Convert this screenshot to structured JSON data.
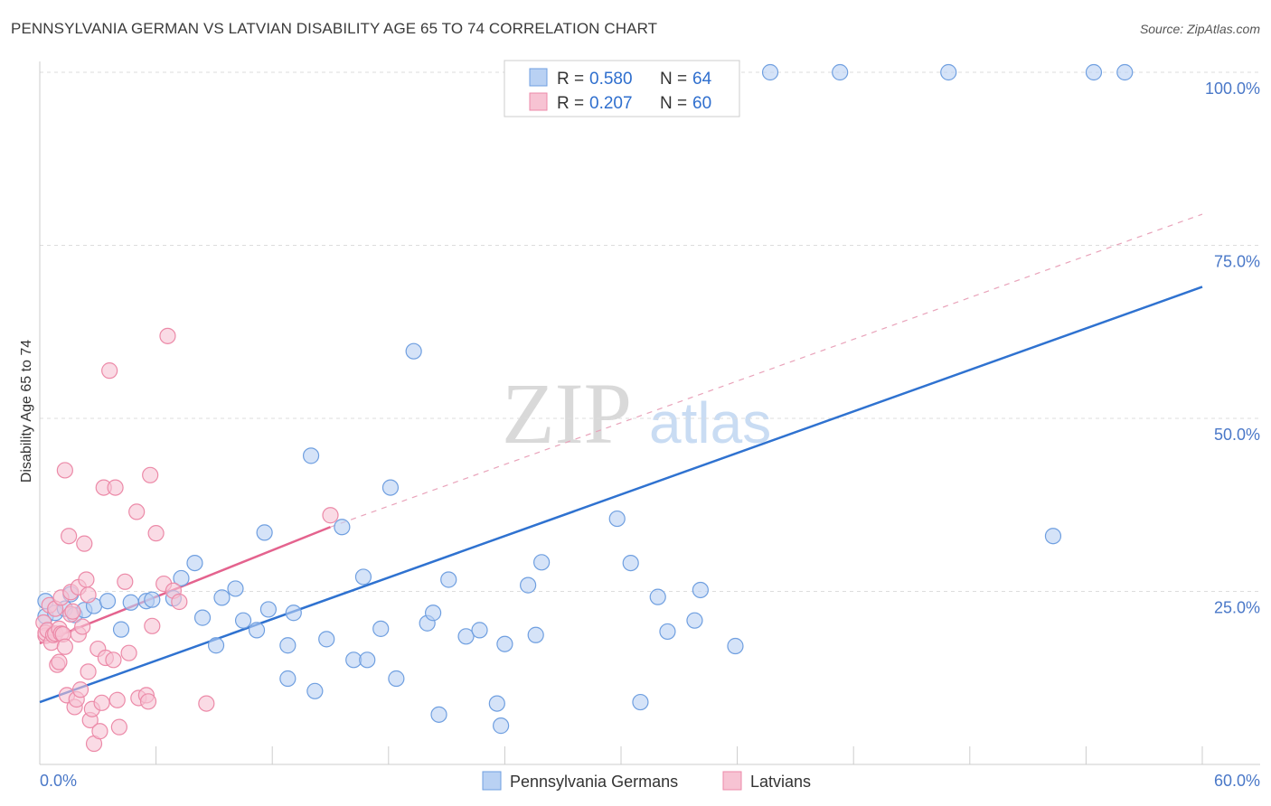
{
  "title": "PENNSYLVANIA GERMAN VS LATVIAN DISABILITY AGE 65 TO 74 CORRELATION CHART",
  "source": "Source: ZipAtlas.com",
  "watermark": {
    "zip": "ZIP",
    "atlas": "atlas"
  },
  "colors": {
    "blue_fill": "#b9d1f3",
    "blue_stroke": "#6f9fe0",
    "blue_line": "#2f72d0",
    "pink_fill": "#f7c3d3",
    "pink_stroke": "#ec8aa8",
    "pink_line": "#e4638e",
    "grid": "#dddddd"
  },
  "legend": {
    "r_label": "R =",
    "n_label": "N =",
    "rows": [
      {
        "name": "Pennsylvania Germans",
        "r": "0.580",
        "n": "64"
      },
      {
        "name": "Latvians",
        "r": "0.207",
        "n": "60"
      }
    ]
  },
  "chart_data": {
    "type": "scatter",
    "title": "PENNSYLVANIA GERMAN VS LATVIAN DISABILITY AGE 65 TO 74 CORRELATION CHART",
    "xlabel": "",
    "ylabel": "Disability Age 65 to 74",
    "xlim": [
      0,
      60
    ],
    "ylim": [
      0,
      100
    ],
    "x_tick_labels": [
      "0.0%",
      "60.0%"
    ],
    "y_ticks": [
      25,
      50,
      75,
      100
    ],
    "y_tick_labels": [
      "25.0%",
      "50.0%",
      "75.0%",
      "100.0%"
    ],
    "grid": true,
    "legend_position": "top-center",
    "series": [
      {
        "name": "Pennsylvania Germans",
        "trend": {
          "x": [
            0,
            60
          ],
          "y": [
            9.0,
            69.0
          ],
          "style": "solid"
        },
        "points": [
          [
            0.3,
            21.4
          ],
          [
            0.8,
            21.9
          ],
          [
            1.3,
            22.5
          ],
          [
            1.8,
            21.6
          ],
          [
            2.3,
            22.3
          ],
          [
            2.8,
            22.9
          ],
          [
            3.5,
            23.6
          ],
          [
            4.2,
            19.5
          ],
          [
            4.7,
            23.4
          ],
          [
            5.5,
            23.6
          ],
          [
            5.8,
            23.8
          ],
          [
            6.9,
            24.0
          ],
          [
            7.3,
            26.9
          ],
          [
            8.0,
            29.1
          ],
          [
            8.4,
            21.2
          ],
          [
            9.1,
            17.2
          ],
          [
            9.4,
            24.1
          ],
          [
            10.1,
            25.4
          ],
          [
            10.5,
            20.8
          ],
          [
            11.2,
            19.4
          ],
          [
            11.6,
            33.5
          ],
          [
            11.8,
            22.4
          ],
          [
            12.8,
            12.4
          ],
          [
            12.8,
            17.2
          ],
          [
            13.1,
            21.9
          ],
          [
            14.0,
            44.6
          ],
          [
            14.2,
            10.6
          ],
          [
            14.8,
            18.1
          ],
          [
            15.6,
            34.3
          ],
          [
            16.2,
            15.1
          ],
          [
            16.7,
            27.1
          ],
          [
            16.9,
            15.1
          ],
          [
            17.6,
            19.6
          ],
          [
            18.1,
            40.0
          ],
          [
            18.4,
            12.4
          ],
          [
            19.3,
            59.7
          ],
          [
            20.0,
            20.4
          ],
          [
            20.3,
            21.9
          ],
          [
            20.6,
            7.2
          ],
          [
            21.1,
            26.7
          ],
          [
            22.0,
            18.5
          ],
          [
            22.7,
            19.4
          ],
          [
            23.6,
            8.8
          ],
          [
            23.8,
            5.6
          ],
          [
            24.0,
            17.4
          ],
          [
            25.2,
            25.9
          ],
          [
            25.6,
            18.7
          ],
          [
            25.9,
            29.2
          ],
          [
            29.8,
            35.5
          ],
          [
            30.5,
            29.1
          ],
          [
            31.0,
            9.0
          ],
          [
            31.9,
            24.2
          ],
          [
            32.4,
            19.2
          ],
          [
            33.8,
            20.8
          ],
          [
            34.1,
            25.2
          ],
          [
            35.9,
            17.1
          ],
          [
            37.7,
            100.0
          ],
          [
            41.3,
            100.0
          ],
          [
            46.9,
            100.0
          ],
          [
            52.3,
            33.0
          ],
          [
            54.4,
            100.0
          ],
          [
            56.0,
            100.0
          ],
          [
            0.3,
            23.6
          ],
          [
            1.6,
            24.6
          ]
        ]
      },
      {
        "name": "Latvians",
        "trend": {
          "x": [
            0,
            15
          ],
          "y": [
            17.5,
            34.3
          ],
          "style": "solid",
          "extension": {
            "x": [
              15,
              60
            ],
            "y": [
              34.3,
              79.5
            ],
            "style": "dashed"
          }
        },
        "points": [
          [
            0.2,
            20.5
          ],
          [
            0.3,
            18.6
          ],
          [
            0.3,
            19.0
          ],
          [
            0.4,
            19.4
          ],
          [
            0.5,
            23.0
          ],
          [
            0.6,
            17.6
          ],
          [
            0.7,
            18.7
          ],
          [
            0.8,
            18.9
          ],
          [
            0.8,
            22.5
          ],
          [
            0.9,
            14.4
          ],
          [
            1.0,
            19.6
          ],
          [
            1.0,
            14.8
          ],
          [
            1.1,
            24.1
          ],
          [
            1.1,
            18.9
          ],
          [
            1.2,
            18.8
          ],
          [
            1.3,
            17.0
          ],
          [
            1.3,
            42.5
          ],
          [
            1.4,
            10.0
          ],
          [
            1.5,
            33.0
          ],
          [
            1.6,
            21.7
          ],
          [
            1.6,
            24.9
          ],
          [
            1.7,
            22.1
          ],
          [
            1.8,
            8.3
          ],
          [
            1.9,
            9.4
          ],
          [
            2.0,
            25.6
          ],
          [
            2.0,
            18.8
          ],
          [
            2.1,
            10.8
          ],
          [
            2.2,
            19.9
          ],
          [
            2.3,
            31.9
          ],
          [
            2.4,
            26.7
          ],
          [
            2.5,
            13.4
          ],
          [
            2.5,
            24.5
          ],
          [
            2.6,
            6.4
          ],
          [
            2.7,
            8.0
          ],
          [
            2.8,
            3.0
          ],
          [
            3.0,
            16.7
          ],
          [
            3.1,
            4.8
          ],
          [
            3.2,
            8.9
          ],
          [
            3.3,
            40.0
          ],
          [
            3.4,
            15.4
          ],
          [
            3.6,
            56.9
          ],
          [
            3.8,
            15.1
          ],
          [
            3.9,
            40.0
          ],
          [
            4.0,
            9.3
          ],
          [
            4.1,
            5.4
          ],
          [
            4.4,
            26.4
          ],
          [
            4.6,
            16.1
          ],
          [
            5.0,
            36.5
          ],
          [
            5.1,
            9.6
          ],
          [
            5.5,
            10.0
          ],
          [
            5.6,
            9.1
          ],
          [
            5.7,
            41.8
          ],
          [
            5.8,
            20.0
          ],
          [
            6.0,
            33.4
          ],
          [
            6.4,
            26.1
          ],
          [
            6.6,
            61.9
          ],
          [
            6.9,
            25.1
          ],
          [
            7.2,
            23.5
          ],
          [
            8.6,
            8.8
          ],
          [
            15.0,
            36.0
          ]
        ]
      }
    ]
  },
  "bottom_legend": [
    {
      "label": "Pennsylvania Germans"
    },
    {
      "label": "Latvians"
    }
  ]
}
